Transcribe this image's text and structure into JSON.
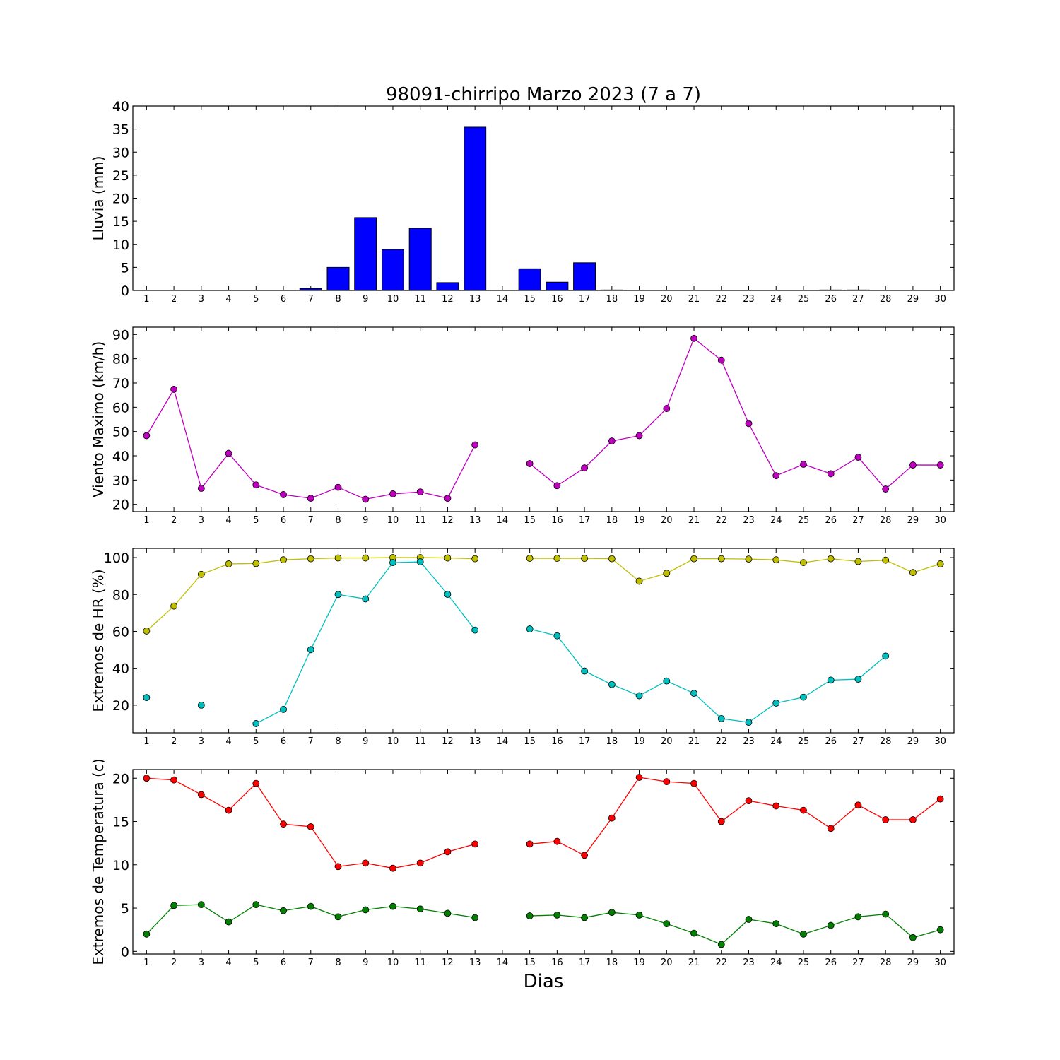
{
  "title": "98091-chirripo Marzo 2023  (7 a 7)",
  "xlabel": "Dias",
  "chart_data": [
    {
      "type": "bar",
      "name": "rain",
      "ylabel": "Lluvia (mm)",
      "ylim": [
        0,
        40
      ],
      "yticks": [
        0,
        5,
        10,
        15,
        20,
        25,
        30,
        35,
        40
      ],
      "x": [
        1,
        2,
        3,
        4,
        5,
        6,
        7,
        8,
        9,
        10,
        11,
        12,
        13,
        14,
        15,
        16,
        17,
        18,
        19,
        20,
        21,
        22,
        23,
        24,
        25,
        26,
        27,
        28,
        29,
        30
      ],
      "series": [
        {
          "color": "#0000ff",
          "values": [
            0,
            0,
            0,
            0,
            0,
            0,
            0.4,
            5.0,
            15.8,
            8.9,
            13.5,
            1.7,
            35.4,
            null,
            4.7,
            1.8,
            6.0,
            0.1,
            0,
            0,
            0,
            0,
            0,
            0,
            0,
            0.1,
            0.1,
            0,
            0,
            0
          ]
        }
      ]
    },
    {
      "type": "line",
      "name": "wind",
      "ylabel": "Viento Maximo (km/h)",
      "ylim": [
        17,
        93
      ],
      "yticks": [
        20,
        30,
        40,
        50,
        60,
        70,
        80,
        90
      ],
      "x": [
        1,
        2,
        3,
        4,
        5,
        6,
        7,
        8,
        9,
        10,
        11,
        12,
        13,
        14,
        15,
        16,
        17,
        18,
        19,
        20,
        21,
        22,
        23,
        24,
        25,
        26,
        27,
        28,
        29,
        30
      ],
      "series": [
        {
          "color": "#bf00bf",
          "values": [
            48.3,
            67.4,
            26.6,
            41.0,
            28.0,
            24.0,
            22.5,
            27.0,
            22.1,
            24.3,
            25.1,
            22.5,
            44.5,
            null,
            36.8,
            27.7,
            35.0,
            46.1,
            48.3,
            59.5,
            88.4,
            79.4,
            53.3,
            31.8,
            36.5,
            32.6,
            39.4,
            26.3,
            36.2,
            36.2
          ]
        }
      ]
    },
    {
      "type": "line",
      "name": "humidity",
      "ylabel": "Extremos de HR (%)",
      "ylim": [
        5,
        105
      ],
      "yticks": [
        20,
        40,
        60,
        80,
        100
      ],
      "x": [
        1,
        2,
        3,
        4,
        5,
        6,
        7,
        8,
        9,
        10,
        11,
        12,
        13,
        14,
        15,
        16,
        17,
        18,
        19,
        20,
        21,
        22,
        23,
        24,
        25,
        26,
        27,
        28,
        29,
        30
      ],
      "series": [
        {
          "color": "#bfbf00",
          "values": [
            60.2,
            73.7,
            90.9,
            96.6,
            96.8,
            98.8,
            99.4,
            99.8,
            99.8,
            100,
            100,
            99.8,
            99.4,
            null,
            99.6,
            99.6,
            99.6,
            99.4,
            87.2,
            91.5,
            99.4,
            99.4,
            99.2,
            98.8,
            97.3,
            99.4,
            97.9,
            98.6,
            91.9,
            96.6
          ]
        },
        {
          "color": "#00bfbf",
          "values": [
            24.1,
            null,
            20.0,
            null,
            10.0,
            17.7,
            50.1,
            80.0,
            77.6,
            97.3,
            97.7,
            80.1,
            60.7,
            null,
            61.3,
            57.6,
            38.5,
            31.2,
            25.1,
            33.1,
            26.4,
            12.7,
            10.7,
            21.1,
            24.3,
            33.6,
            34.1,
            46.6,
            null,
            null
          ]
        }
      ]
    },
    {
      "type": "line",
      "name": "temperature",
      "ylabel": "Extremos de Temperatura (c)",
      "ylim": [
        -0.3,
        21
      ],
      "yticks": [
        0,
        5,
        10,
        15,
        20
      ],
      "x": [
        1,
        2,
        3,
        4,
        5,
        6,
        7,
        8,
        9,
        10,
        11,
        12,
        13,
        14,
        15,
        16,
        17,
        18,
        19,
        20,
        21,
        22,
        23,
        24,
        25,
        26,
        27,
        28,
        29,
        30
      ],
      "series": [
        {
          "color": "#ff0000",
          "values": [
            20.0,
            19.8,
            18.1,
            16.3,
            19.4,
            14.7,
            14.4,
            9.8,
            10.2,
            9.6,
            10.2,
            11.5,
            12.4,
            null,
            12.4,
            12.7,
            11.1,
            15.4,
            20.1,
            19.6,
            19.4,
            15.0,
            17.4,
            16.8,
            16.3,
            14.2,
            16.9,
            15.2,
            15.2,
            17.6
          ]
        },
        {
          "color": "#007f00",
          "values": [
            2.0,
            5.3,
            5.4,
            3.4,
            5.4,
            4.7,
            5.2,
            4.0,
            4.8,
            5.2,
            4.9,
            4.4,
            3.9,
            null,
            4.1,
            4.2,
            3.9,
            4.5,
            4.2,
            3.2,
            2.1,
            0.8,
            3.7,
            3.2,
            2.0,
            3.0,
            4.0,
            4.3,
            1.6,
            2.5
          ]
        }
      ]
    }
  ]
}
